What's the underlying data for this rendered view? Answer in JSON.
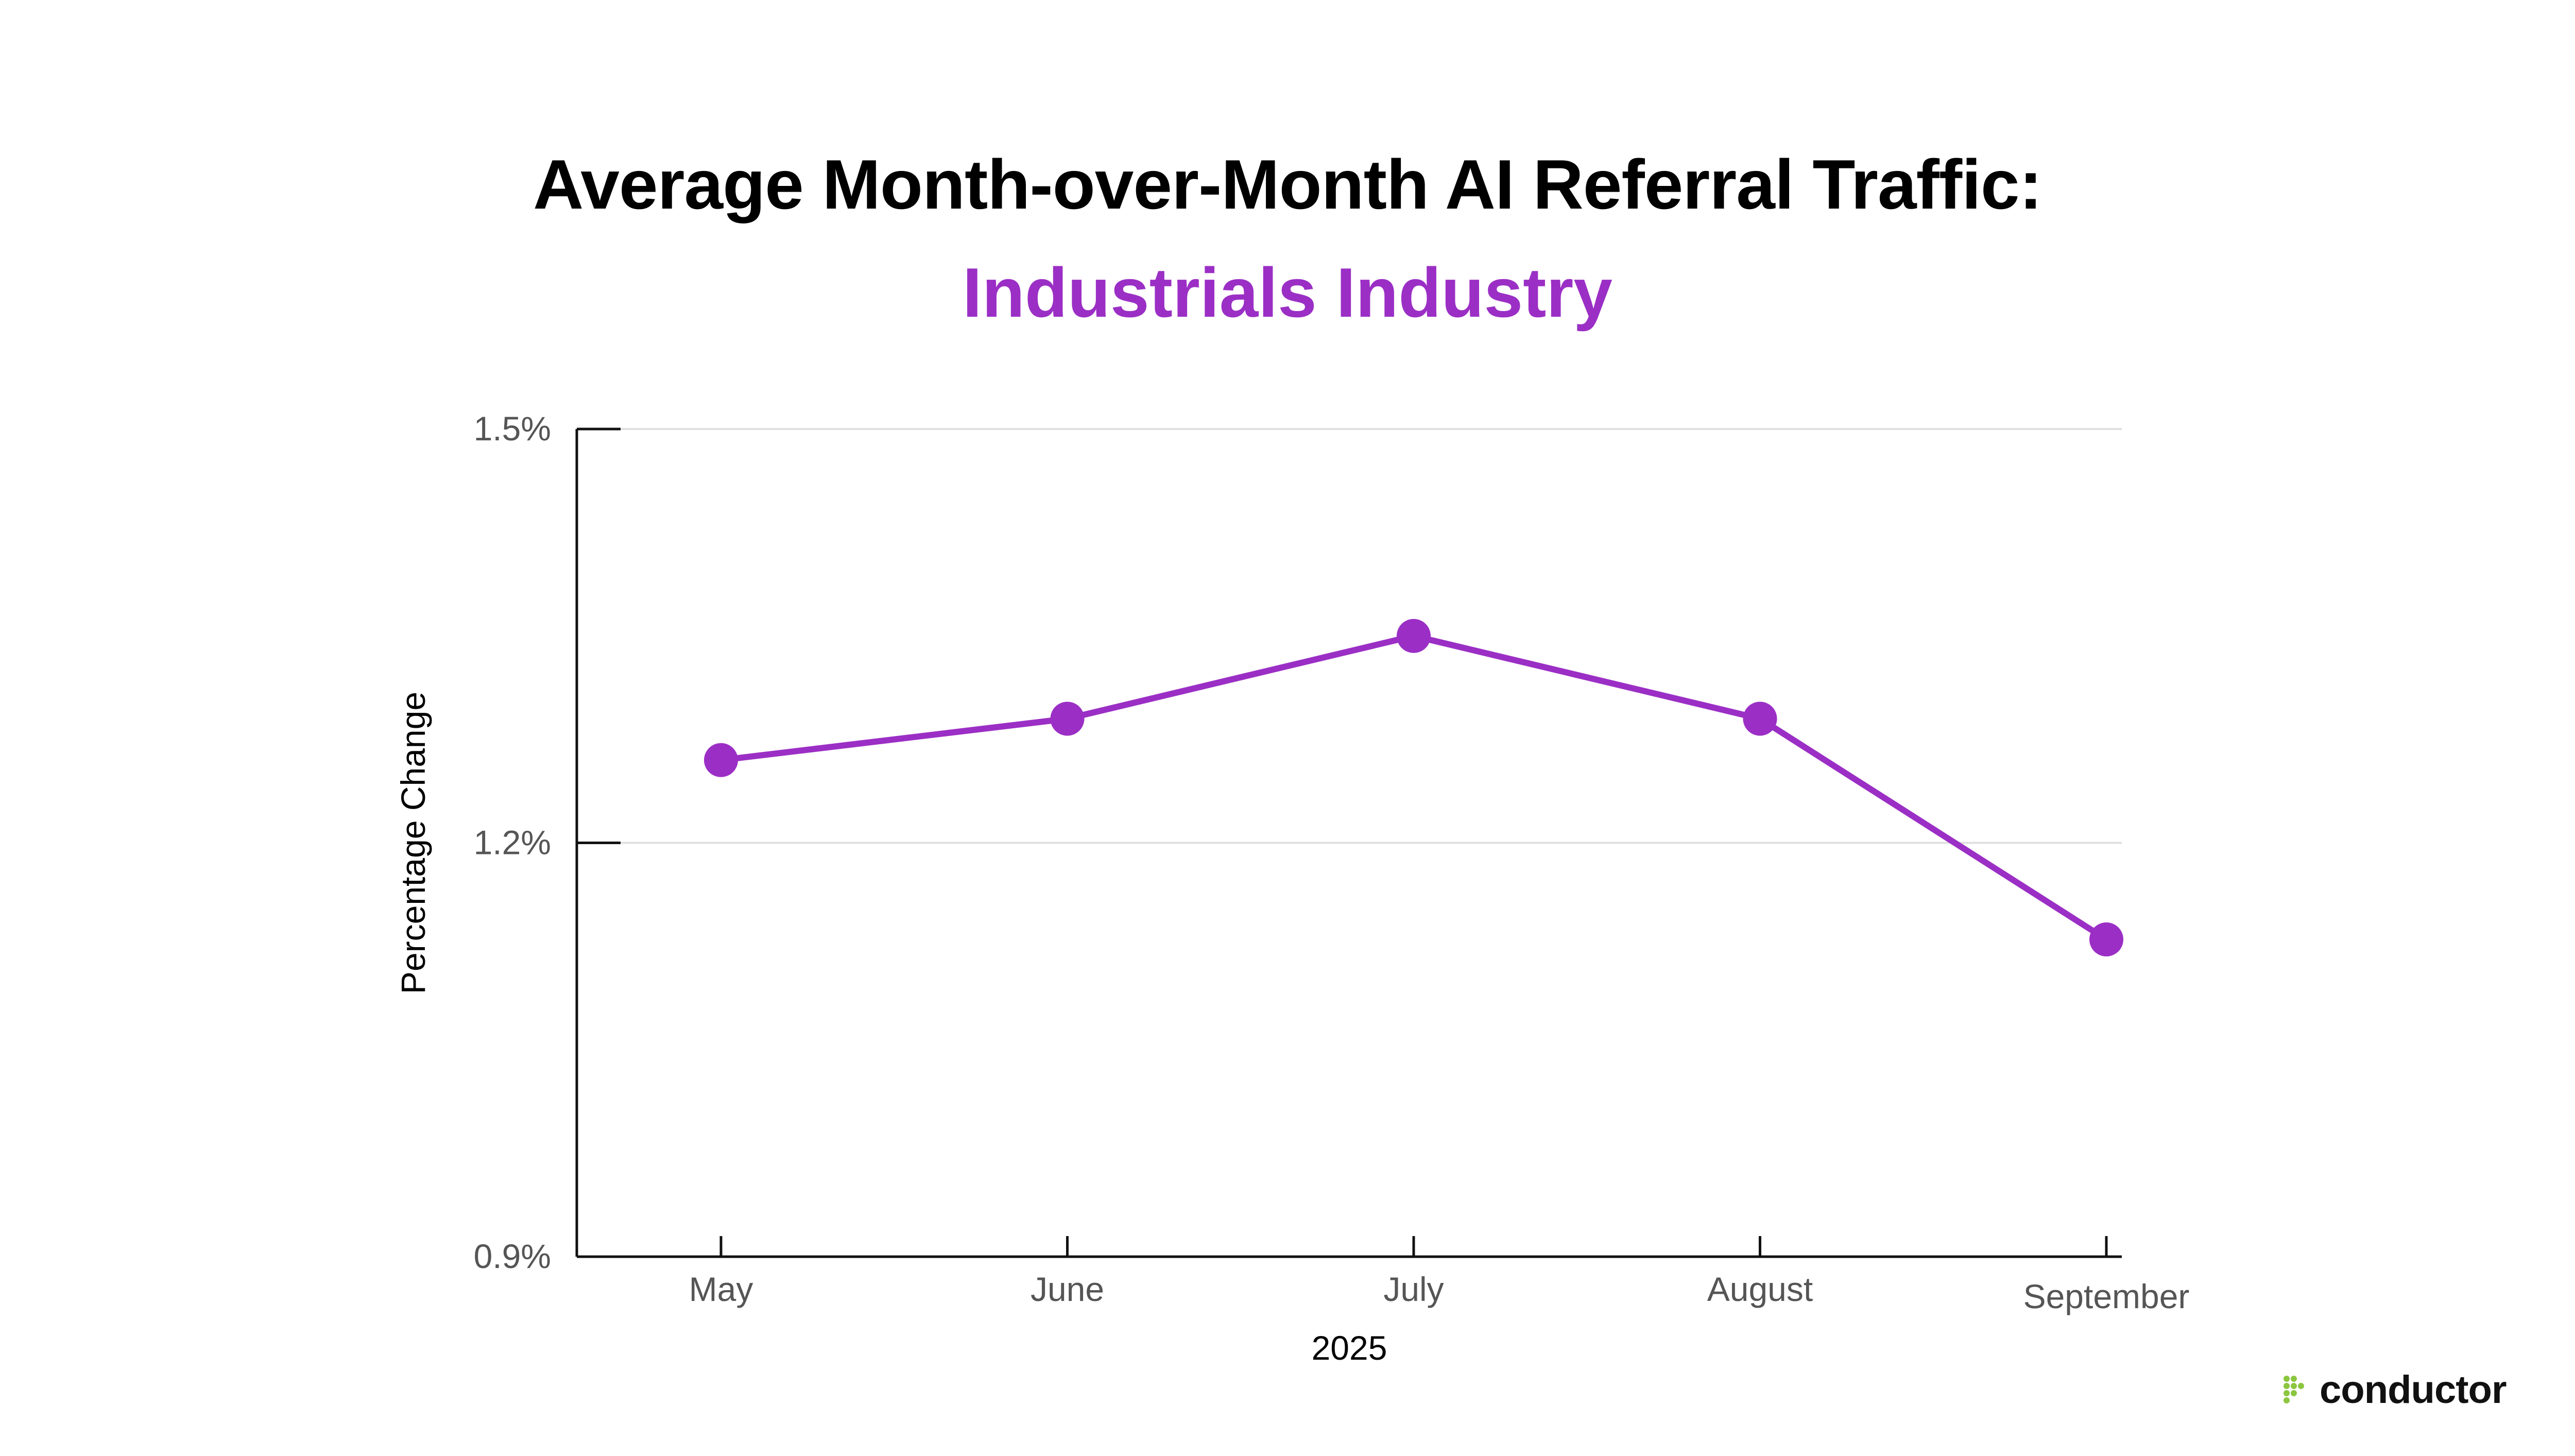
{
  "colors": {
    "series": "#9B2FC5",
    "logo_dots": "#8CC63F",
    "axis": "#111111",
    "grid": "#e0e0e0"
  },
  "logo": {
    "icon": "conductor-dots-icon",
    "text": "conductor"
  },
  "chart_data": {
    "type": "line",
    "title": "Average Month-over-Month AI Referral Traffic:",
    "subtitle": "Industrials Industry",
    "xlabel": "2025",
    "ylabel": "Percentage Change",
    "categories": [
      "May",
      "June",
      "July",
      "August",
      "September"
    ],
    "series": [
      {
        "values": [
          1.26,
          1.29,
          1.35,
          1.29,
          1.13
        ]
      }
    ],
    "ylim": [
      0.9,
      1.5
    ],
    "yticks": [
      {
        "value": 1.5,
        "label": "1.5%"
      },
      {
        "value": 1.2,
        "label": "1.2%"
      },
      {
        "value": 0.9,
        "label": "0.9%"
      }
    ],
    "grid": true,
    "legend": "none"
  }
}
